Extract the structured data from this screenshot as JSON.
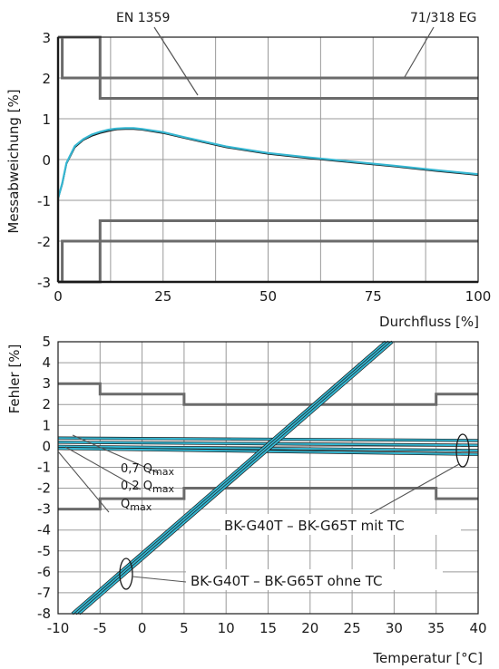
{
  "chart_data": [
    {
      "type": "line",
      "xlabel": "Durchfluss [%]",
      "ylabel": "Messabweichung [%]",
      "xlim": [
        0,
        100
      ],
      "ylim": [
        -3,
        3
      ],
      "xticks": [
        "0",
        "25",
        "50",
        "75",
        "100"
      ],
      "yticks": [
        "-3",
        "-2",
        "-1",
        "0",
        "1",
        "2",
        "3"
      ],
      "grid": true,
      "annotations": [
        "EN 1359",
        "71/318 EG"
      ],
      "limits": [
        {
          "name": "EN 1359",
          "upper": [
            [
              0,
              3
            ],
            [
              10,
              3
            ],
            [
              10,
              1.5
            ],
            [
              100,
              1.5
            ]
          ],
          "lower": [
            [
              0,
              -3
            ],
            [
              10,
              -3
            ],
            [
              10,
              -1.5
            ],
            [
              100,
              -1.5
            ]
          ]
        },
        {
          "name": "71/318 EG",
          "upper": [
            [
              1,
              3
            ],
            [
              1,
              2
            ],
            [
              100,
              2
            ]
          ],
          "lower": [
            [
              1,
              -3
            ],
            [
              1,
              -2
            ],
            [
              100,
              -2
            ]
          ]
        }
      ],
      "series": [
        {
          "color": "#1a1a1a",
          "x": [
            0,
            1,
            2,
            4,
            6,
            8,
            10,
            12,
            14,
            16,
            18,
            20,
            25,
            30,
            40,
            50,
            60,
            70,
            80,
            90,
            100
          ],
          "y": [
            -0.95,
            -0.6,
            -0.1,
            0.3,
            0.48,
            0.58,
            0.65,
            0.7,
            0.74,
            0.75,
            0.75,
            0.73,
            0.65,
            0.53,
            0.3,
            0.14,
            0.03,
            -0.07,
            -0.17,
            -0.28,
            -0.38
          ]
        },
        {
          "color": "#35b6d1",
          "x": [
            0,
            1,
            2,
            4,
            6,
            8,
            10,
            12,
            14,
            16,
            18,
            20,
            25,
            30,
            40,
            50,
            60,
            70,
            80,
            90,
            100
          ],
          "y": [
            -0.95,
            -0.58,
            -0.08,
            0.33,
            0.5,
            0.61,
            0.68,
            0.73,
            0.76,
            0.77,
            0.77,
            0.75,
            0.67,
            0.55,
            0.32,
            0.16,
            0.05,
            -0.05,
            -0.15,
            -0.26,
            -0.36
          ]
        }
      ]
    },
    {
      "type": "line",
      "xlabel": "Temperatur [°C]",
      "ylabel": "Fehler [%]",
      "xlim": [
        -10,
        40
      ],
      "ylim": [
        -8,
        5
      ],
      "xticks": [
        "-10",
        "-5",
        "0",
        "5",
        "10",
        "15",
        "20",
        "25",
        "30",
        "35",
        "40"
      ],
      "yticks": [
        "5",
        "4",
        "3",
        "2",
        "1",
        "0",
        "-1",
        "-2",
        "-3",
        "-4",
        "-5",
        "-6",
        "-7",
        "-8"
      ],
      "grid": true,
      "annotations": {
        "q07": {
          "main": "0,7 Q",
          "sub": "max"
        },
        "q02": {
          "main": "0,2 Q",
          "sub": "max"
        },
        "qmax": {
          "main": "Q",
          "sub": "max"
        },
        "mit_tc": "BK-G40T – BK-G65T mit TC",
        "ohne_tc": "BK-G40T – BK-G65T ohne TC"
      },
      "limits": {
        "upper": [
          [
            -10,
            3
          ],
          [
            -5,
            3
          ],
          [
            -5,
            2.5
          ],
          [
            5,
            2.5
          ],
          [
            5,
            2
          ],
          [
            35,
            2
          ],
          [
            35,
            2.5
          ],
          [
            40,
            2.5
          ]
        ],
        "lower": [
          [
            -10,
            -3
          ],
          [
            -5,
            -3
          ],
          [
            -5,
            -2.5
          ],
          [
            5,
            -2.5
          ],
          [
            5,
            -2
          ],
          [
            35,
            -2
          ],
          [
            35,
            -2.5
          ],
          [
            40,
            -2.5
          ]
        ]
      },
      "series_mit_tc": [
        {
          "color": "#35b6d1",
          "x": [
            -10,
            40
          ],
          "y": [
            0.4,
            0.28
          ]
        },
        {
          "color": "#35b6d1",
          "x": [
            -10,
            40
          ],
          "y": [
            0.2,
            0.05
          ]
        },
        {
          "color": "#35b6d1",
          "x": [
            -10,
            40
          ],
          "y": [
            0.0,
            -0.2
          ]
        },
        {
          "color": "#35b6d1",
          "x": [
            -10,
            40
          ],
          "y": [
            -0.1,
            -0.38
          ]
        }
      ],
      "series_ohne_tc": [
        {
          "color": "#35b6d1",
          "x": [
            -8.3,
            29.0
          ],
          "y": [
            -8,
            5
          ]
        },
        {
          "color": "#35b6d1",
          "x": [
            -7.9,
            29.4
          ],
          "y": [
            -8,
            5
          ]
        },
        {
          "color": "#35b6d1",
          "x": [
            -7.5,
            29.8
          ],
          "y": [
            -8,
            5
          ]
        }
      ]
    }
  ]
}
